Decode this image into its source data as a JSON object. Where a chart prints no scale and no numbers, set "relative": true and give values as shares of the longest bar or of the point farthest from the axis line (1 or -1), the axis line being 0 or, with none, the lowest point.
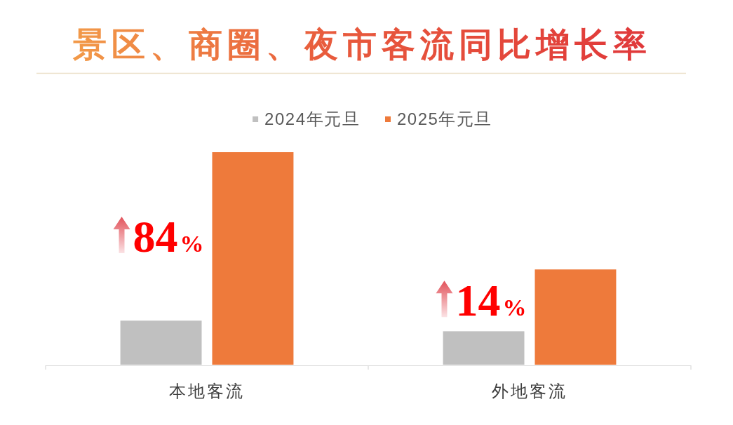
{
  "chart_data": {
    "type": "bar",
    "title": "景区、商圈、夜市客流同比增长率",
    "categories": [
      "本地客流",
      "外地客流"
    ],
    "relative": true,
    "series": [
      {
        "name": "2024年元旦",
        "color": "#c0c0c0",
        "values": [
          0.21,
          0.16
        ]
      },
      {
        "name": "2025年元旦",
        "color": "#ee7a3b",
        "values": [
          1,
          0.45
        ]
      }
    ],
    "annotations": [
      "84%",
      "14%"
    ],
    "legend": "top"
  }
}
